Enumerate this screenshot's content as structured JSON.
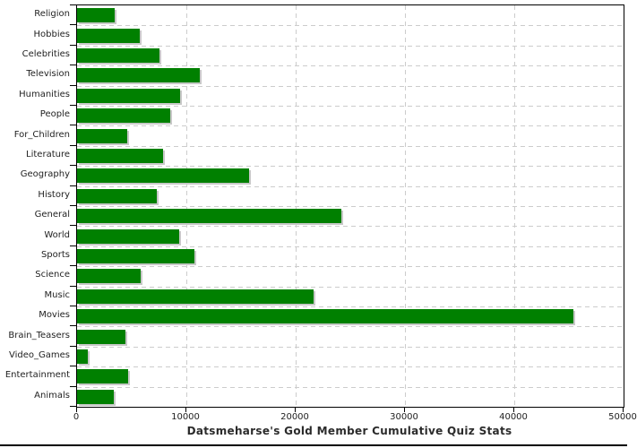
{
  "chart_data": {
    "type": "bar",
    "orientation": "horizontal",
    "title": "Datsmeharse's Gold Member Cumulative Quiz Stats",
    "xlabel": "",
    "ylabel": "",
    "categories": [
      "Religion",
      "Hobbies",
      "Celebrities",
      "Television",
      "Humanities",
      "People",
      "For_Children",
      "Literature",
      "Geography",
      "History",
      "General",
      "World",
      "Sports",
      "Science",
      "Music",
      "Movies",
      "Brain_Teasers",
      "Video_Games",
      "Entertainment",
      "Animals"
    ],
    "values": [
      3450,
      5750,
      7550,
      11250,
      9450,
      8550,
      4550,
      7850,
      15700,
      7300,
      24200,
      9350,
      10700,
      5800,
      21650,
      45450,
      4400,
      980,
      4700,
      3390
    ],
    "xlim": [
      0,
      50000
    ],
    "x_ticks": [
      0,
      10000,
      20000,
      30000,
      40000,
      50000
    ],
    "x_tick_labels": [
      "0",
      "10000",
      "20000",
      "30000",
      "40000",
      "50000"
    ],
    "grid": true,
    "legend": false,
    "colors": {
      "bar": "#008000",
      "bar_shadow": "#c8c8c8",
      "grid": "#cccccc",
      "axis": "#000000",
      "text": "#222222"
    }
  }
}
